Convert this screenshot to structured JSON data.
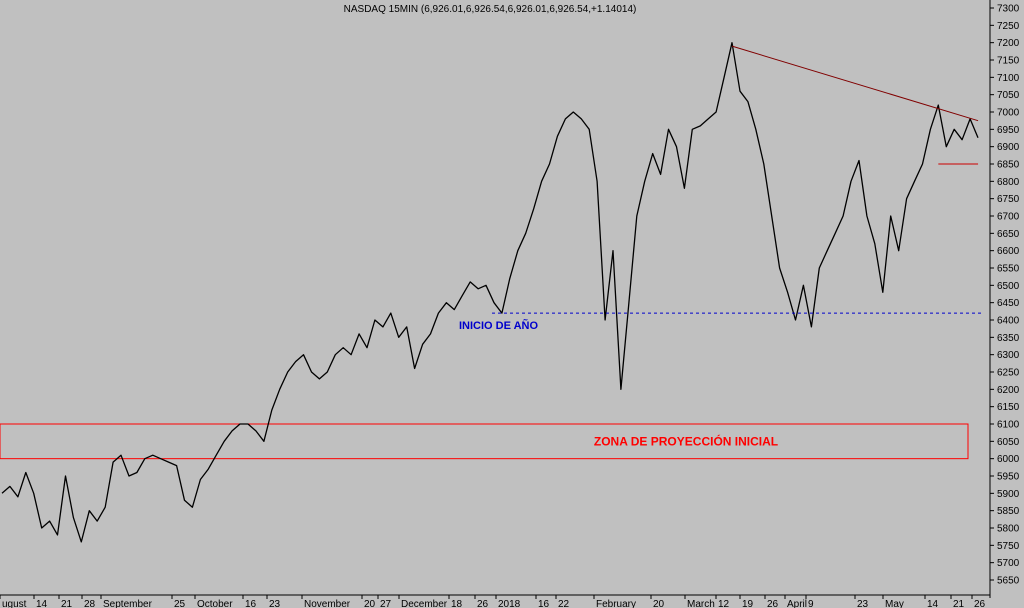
{
  "chart_data": {
    "type": "line",
    "title": "NASDAQ 15MIN (6,926.01,6,926.54,6,926.01,6,926.54,+1.14014)",
    "ylim": [
      5600,
      7320
    ],
    "y_ticks": [
      5650,
      5700,
      5750,
      5800,
      5850,
      5900,
      5950,
      6000,
      6050,
      6100,
      6150,
      6200,
      6250,
      6300,
      6350,
      6400,
      6450,
      6500,
      6550,
      6600,
      6650,
      6700,
      6750,
      6800,
      6850,
      6900,
      6950,
      7000,
      7050,
      7100,
      7150,
      7200,
      7250,
      7300
    ],
    "x_ticks": [
      "ugust",
      "14",
      "21",
      "28",
      "September",
      "25",
      "October",
      "16",
      "23",
      "November",
      "20",
      "27",
      "December",
      "18",
      "26",
      "2018",
      "16",
      "22",
      "February",
      "20",
      "March",
      "12",
      "19",
      "26",
      "April",
      "9",
      "23",
      "May",
      "14",
      "21",
      "26"
    ],
    "grid": false,
    "series": [
      {
        "values": [
          5900,
          5920,
          5890,
          5960,
          5900,
          5800,
          5820,
          5780,
          5950,
          5830,
          5760,
          5850,
          5820,
          5860,
          5990,
          6010,
          5950,
          5960,
          6000,
          6010,
          6000,
          5990,
          5980,
          5880,
          5860,
          5940,
          5970,
          6010,
          6050,
          6080,
          6100,
          6100,
          6080,
          6050,
          6140,
          6200,
          6250,
          6280,
          6300,
          6250,
          6230,
          6250,
          6300,
          6320,
          6300,
          6360,
          6320,
          6400,
          6380,
          6420,
          6350,
          6380,
          6260,
          6330,
          6360,
          6420,
          6450,
          6430,
          6470,
          6510,
          6490,
          6500,
          6450,
          6420,
          6520,
          6600,
          6650,
          6720,
          6800,
          6850,
          6930,
          6980,
          7000,
          6980,
          6950,
          6800,
          6400,
          6600,
          6200,
          6450,
          6700,
          6800,
          6880,
          6820,
          6950,
          6900,
          6780,
          6950,
          6960,
          6980,
          7000,
          7100,
          7200,
          7060,
          7030,
          6950,
          6850,
          6700,
          6550,
          6480,
          6400,
          6500,
          6380,
          6550,
          6600,
          6650,
          6700,
          6800,
          6860,
          6700,
          6620,
          6480,
          6700,
          6600,
          6750,
          6800,
          6850,
          6950,
          7020,
          6900,
          6950,
          6920,
          6980,
          6926
        ]
      }
    ],
    "annotations": [
      {
        "text": "INICIO DE AÑO",
        "color": "#0000cc",
        "level": 6420
      },
      {
        "text": "ZONA DE PROYECCIÓN INICIAL",
        "color": "#ff0000",
        "zone": [
          6000,
          6100
        ]
      }
    ],
    "trend_lines": [
      {
        "color": "#800000",
        "from": [
          92,
          7190
        ],
        "to": [
          122,
          6975
        ]
      },
      {
        "color": "#cc0000",
        "from": [
          118,
          6850
        ],
        "to": [
          122,
          6850
        ]
      }
    ]
  }
}
